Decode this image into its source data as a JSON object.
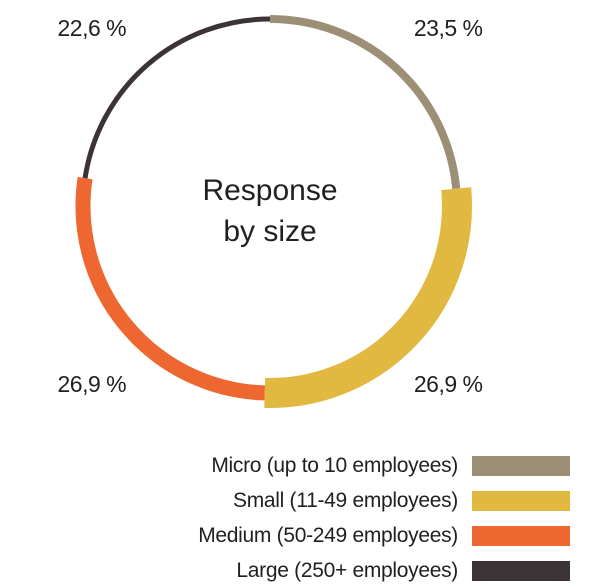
{
  "chart_data": {
    "type": "pie",
    "title": "Response by size",
    "title_lines": [
      "Response",
      "by size"
    ],
    "categories": [
      "Micro (up to 10 employees)",
      "Small (11-49 employees)",
      "Medium (50-249 employees)",
      "Large (250+ employees)"
    ],
    "values": [
      23.5,
      26.9,
      26.9,
      22.6
    ],
    "labels": [
      "23,5 %",
      "26,9 %",
      "26,9 %",
      "22,6 %"
    ],
    "colors": [
      "#9c8f76",
      "#e2b940",
      "#ee6630",
      "#3b3335"
    ],
    "legend_position": "bottom-right"
  }
}
